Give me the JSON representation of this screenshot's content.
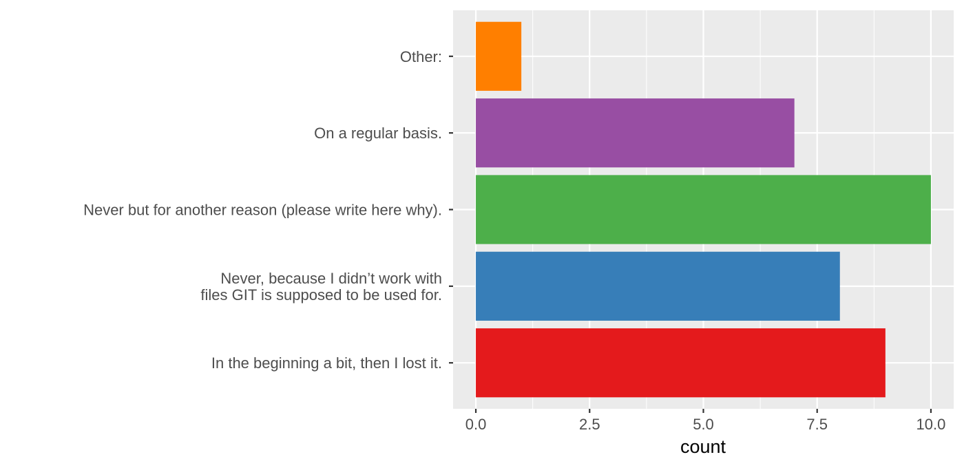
{
  "chart_data": {
    "type": "bar",
    "orientation": "horizontal",
    "categories": [
      "In the beginning a bit, then I lost it.",
      "Never, because I didn’t work with\nfiles GIT is supposed to be used for.",
      "Never but for another reason (please write here why).",
      "On a regular basis.",
      "Other:"
    ],
    "values": [
      9,
      8,
      10,
      7,
      1
    ],
    "colors": [
      "#E41A1C",
      "#377EB8",
      "#4DAF4A",
      "#984EA3",
      "#FF7F00"
    ],
    "xlabel": "count",
    "ylabel": "",
    "xlim": [
      -0.5,
      10.5
    ],
    "xticks": [
      0,
      2.5,
      5,
      7.5,
      10
    ],
    "xtick_labels": [
      "0.0",
      "2.5",
      "5.0",
      "7.5",
      "10.0"
    ],
    "panel_background": "#EBEBEB",
    "grid_color": "#FFFFFF",
    "grid": true,
    "legend": "none"
  }
}
